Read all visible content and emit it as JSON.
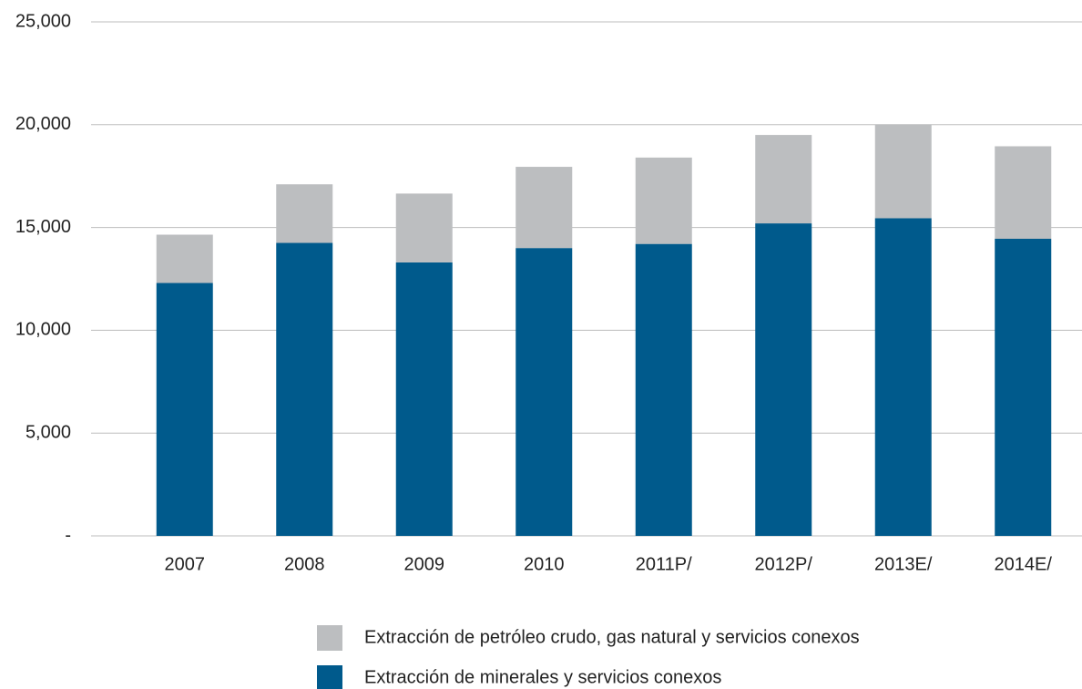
{
  "chart_data": {
    "type": "stacked_bar",
    "categories": [
      "2007",
      "2008",
      "2009",
      "2010",
      "2011P/",
      "2012P/",
      "2013E/",
      "2014E/"
    ],
    "series": [
      {
        "name": "Extracción de minerales y servicios conexos",
        "color": "#005a8c",
        "values": [
          12300,
          14250,
          13300,
          14000,
          14200,
          15200,
          15450,
          14450
        ]
      },
      {
        "name": "Extracción de petróleo crudo, gas natural y servicios conexos",
        "color": "#bcbec0",
        "values": [
          2350,
          2850,
          3350,
          3950,
          4200,
          4300,
          4550,
          4500
        ]
      }
    ],
    "ylim": [
      0,
      25000
    ],
    "yticks": [
      {
        "value": 0,
        "label": "-"
      },
      {
        "value": 5000,
        "label": "5,000"
      },
      {
        "value": 10000,
        "label": "10,000"
      },
      {
        "value": 15000,
        "label": "15,000"
      },
      {
        "value": 20000,
        "label": "20,000"
      },
      {
        "value": 25000,
        "label": "25,000"
      }
    ],
    "grid": true
  }
}
